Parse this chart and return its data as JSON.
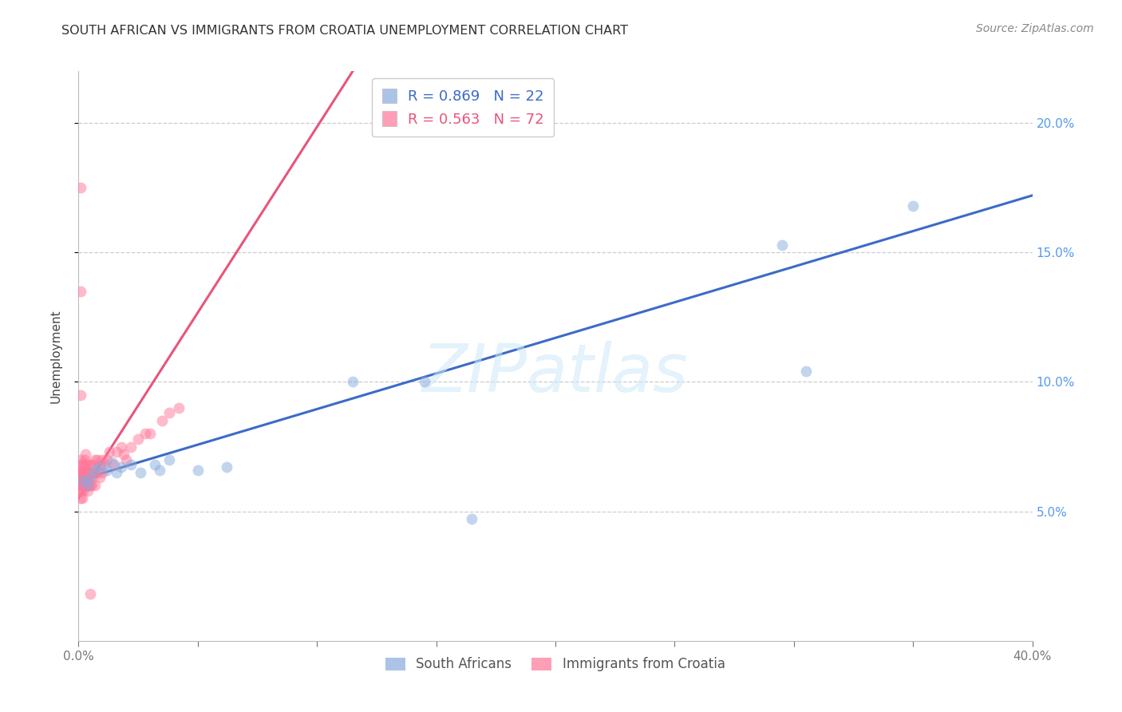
{
  "title": "SOUTH AFRICAN VS IMMIGRANTS FROM CROATIA UNEMPLOYMENT CORRELATION CHART",
  "source": "Source: ZipAtlas.com",
  "ylabel": "Unemployment",
  "watermark": "ZIPatlas",
  "blue_R": 0.869,
  "blue_N": 22,
  "pink_R": 0.563,
  "pink_N": 72,
  "blue_color": "#88AADD",
  "pink_color": "#FF7799",
  "blue_line_color": "#3B6BC8",
  "pink_line_color": "#E8557A",
  "legend_blue_label": "South Africans",
  "legend_pink_label": "Immigrants from Croatia",
  "xlim_min": 0.0,
  "xlim_max": 0.4,
  "ylim_min": 0.0,
  "ylim_max": 0.22,
  "xtick_vals": [
    0.0,
    0.4
  ],
  "xtick_labels": [
    "0.0%",
    "40.0%"
  ],
  "ytick_vals": [
    0.05,
    0.1,
    0.15,
    0.2
  ],
  "ytick_labels": [
    "5.0%",
    "10.0%",
    "15.0%",
    "20.0%"
  ],
  "blue_line_x0": 0.0,
  "blue_line_y0": 0.062,
  "blue_line_x1": 0.4,
  "blue_line_y1": 0.172,
  "pink_line_x0": 0.0,
  "pink_line_y0": 0.055,
  "pink_line_x1": 0.115,
  "pink_line_y1": 0.22,
  "blue_x": [
    0.002,
    0.004,
    0.005,
    0.007,
    0.009,
    0.012,
    0.014,
    0.016,
    0.018,
    0.022,
    0.026,
    0.032,
    0.034,
    0.038,
    0.05,
    0.062,
    0.115,
    0.145,
    0.165,
    0.295,
    0.305,
    0.35
  ],
  "blue_y": [
    0.062,
    0.06,
    0.063,
    0.066,
    0.067,
    0.066,
    0.069,
    0.065,
    0.067,
    0.068,
    0.065,
    0.068,
    0.066,
    0.07,
    0.066,
    0.067,
    0.1,
    0.1,
    0.047,
    0.153,
    0.104,
    0.168
  ],
  "pink_x": [
    0.0005,
    0.0006,
    0.0007,
    0.0008,
    0.0009,
    0.001,
    0.001,
    0.001,
    0.001,
    0.0012,
    0.0012,
    0.0015,
    0.0015,
    0.0016,
    0.0017,
    0.0018,
    0.0019,
    0.002,
    0.002,
    0.002,
    0.0022,
    0.0022,
    0.0025,
    0.0025,
    0.003,
    0.003,
    0.003,
    0.003,
    0.0032,
    0.0032,
    0.004,
    0.004,
    0.004,
    0.0042,
    0.0045,
    0.005,
    0.005,
    0.005,
    0.0052,
    0.0055,
    0.006,
    0.006,
    0.0065,
    0.007,
    0.007,
    0.007,
    0.008,
    0.008,
    0.009,
    0.009,
    0.01,
    0.01,
    0.011,
    0.012,
    0.013,
    0.015,
    0.016,
    0.018,
    0.019,
    0.02,
    0.022,
    0.025,
    0.028,
    0.03,
    0.035,
    0.038,
    0.042,
    0.005,
    0.001,
    0.001,
    0.001,
    0.0008
  ],
  "pink_y": [
    0.063,
    0.06,
    0.058,
    0.065,
    0.062,
    0.06,
    0.065,
    0.07,
    0.058,
    0.063,
    0.068,
    0.055,
    0.063,
    0.068,
    0.065,
    0.06,
    0.065,
    0.062,
    0.058,
    0.065,
    0.06,
    0.067,
    0.063,
    0.07,
    0.06,
    0.065,
    0.068,
    0.072,
    0.06,
    0.065,
    0.058,
    0.063,
    0.068,
    0.06,
    0.065,
    0.06,
    0.063,
    0.068,
    0.065,
    0.06,
    0.063,
    0.068,
    0.065,
    0.06,
    0.065,
    0.07,
    0.065,
    0.07,
    0.063,
    0.068,
    0.065,
    0.07,
    0.068,
    0.07,
    0.073,
    0.068,
    0.073,
    0.075,
    0.072,
    0.07,
    0.075,
    0.078,
    0.08,
    0.08,
    0.085,
    0.088,
    0.09,
    0.018,
    0.175,
    0.135,
    0.095,
    0.055
  ]
}
